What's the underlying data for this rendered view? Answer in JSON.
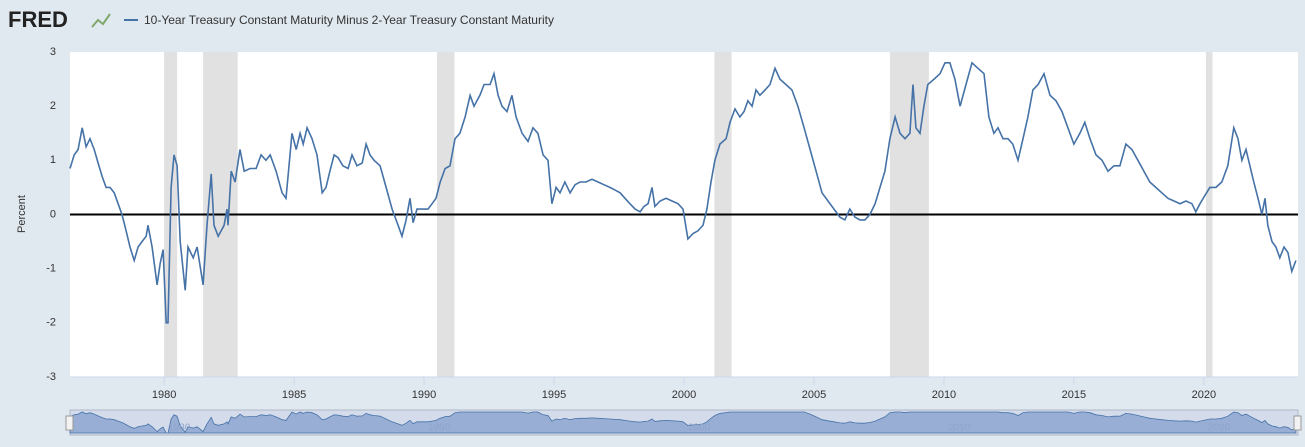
{
  "chart_data": {
    "type": "line",
    "brand": "FRED",
    "y_label": "Percent",
    "x": [
      1976.38,
      1976.54,
      1976.69,
      1976.85,
      1977.0,
      1977.15,
      1977.31,
      1977.46,
      1977.62,
      1977.77,
      1977.92,
      1978.08,
      1978.23,
      1978.38,
      1978.54,
      1978.69,
      1978.85,
      1979.0,
      1979.15,
      1979.31,
      1979.38,
      1979.54,
      1979.73,
      1979.85,
      1979.96,
      1980.08,
      1980.15,
      1980.27,
      1980.38,
      1980.5,
      1980.62,
      1980.81,
      1980.92,
      1981.12,
      1981.27,
      1981.5,
      1981.65,
      1981.81,
      1981.92,
      1982.08,
      1982.31,
      1982.42,
      1982.46,
      1982.58,
      1982.73,
      1982.92,
      1983.08,
      1983.31,
      1983.54,
      1983.73,
      1983.92,
      1984.08,
      1984.31,
      1984.54,
      1984.69,
      1984.92,
      1985.08,
      1985.23,
      1985.35,
      1985.5,
      1985.69,
      1985.88,
      1986.08,
      1986.23,
      1986.38,
      1986.54,
      1986.69,
      1986.88,
      1987.08,
      1987.23,
      1987.42,
      1987.62,
      1987.77,
      1987.92,
      1988.08,
      1988.31,
      1988.54,
      1988.77,
      1989.0,
      1989.15,
      1989.31,
      1989.46,
      1989.58,
      1989.73,
      1989.92,
      1990.15,
      1990.31,
      1990.46,
      1990.62,
      1990.81,
      1991.0,
      1991.19,
      1991.38,
      1991.58,
      1991.77,
      1991.92,
      1992.15,
      1992.31,
      1992.54,
      1992.69,
      1992.85,
      1993.0,
      1993.19,
      1993.38,
      1993.54,
      1993.77,
      1994.0,
      1994.19,
      1994.38,
      1994.58,
      1994.77,
      1994.92,
      1995.08,
      1995.23,
      1995.42,
      1995.62,
      1995.81,
      1996.0,
      1996.23,
      1996.46,
      1996.69,
      1996.92,
      1997.15,
      1997.35,
      1997.54,
      1997.73,
      1997.92,
      1998.12,
      1998.31,
      1998.46,
      1998.62,
      1998.77,
      1998.88,
      1999.08,
      1999.31,
      1999.54,
      1999.77,
      1999.96,
      2000.15,
      2000.35,
      2000.54,
      2000.73,
      2000.88,
      2001.04,
      2001.19,
      2001.38,
      2001.62,
      2001.77,
      2001.96,
      2002.15,
      2002.31,
      2002.46,
      2002.62,
      2002.77,
      2002.92,
      2003.12,
      2003.31,
      2003.5,
      2003.69,
      2003.92,
      2004.15,
      2004.38,
      2004.62,
      2004.85,
      2005.08,
      2005.31,
      2005.54,
      2005.77,
      2006.0,
      2006.19,
      2006.38,
      2006.58,
      2006.77,
      2006.96,
      2007.15,
      2007.35,
      2007.54,
      2007.73,
      2007.92,
      2008.12,
      2008.31,
      2008.5,
      2008.69,
      2008.81,
      2008.92,
      2009.08,
      2009.23,
      2009.38,
      2009.62,
      2009.85,
      2010.04,
      2010.23,
      2010.42,
      2010.62,
      2010.85,
      2011.08,
      2011.31,
      2011.54,
      2011.73,
      2011.92,
      2012.08,
      2012.27,
      2012.46,
      2012.65,
      2012.85,
      2013.04,
      2013.23,
      2013.42,
      2013.62,
      2013.85,
      2014.08,
      2014.31,
      2014.54,
      2014.77,
      2015.0,
      2015.23,
      2015.42,
      2015.62,
      2015.85,
      2016.08,
      2016.31,
      2016.54,
      2016.77,
      2017.0,
      2017.23,
      2017.46,
      2017.69,
      2017.92,
      2018.15,
      2018.38,
      2018.62,
      2018.85,
      2019.08,
      2019.31,
      2019.54,
      2019.69,
      2019.85,
      2020.04,
      2020.23,
      2020.46,
      2020.69,
      2020.92,
      2021.15,
      2021.31,
      2021.46,
      2021.62,
      2021.77,
      2021.92,
      2022.08,
      2022.23,
      2022.35,
      2022.46,
      2022.62,
      2022.77,
      2022.92,
      2023.08,
      2023.23,
      2023.38,
      2023.54
    ],
    "series": [
      {
        "name": "10-Year Treasury Constant Maturity Minus 2-Year Treasury Constant Maturity",
        "color": "#4572a7",
        "values": [
          0.85,
          1.1,
          1.2,
          1.6,
          1.25,
          1.4,
          1.2,
          0.95,
          0.7,
          0.5,
          0.5,
          0.4,
          0.2,
          0.0,
          -0.3,
          -0.6,
          -0.85,
          -0.6,
          -0.5,
          -0.4,
          -0.2,
          -0.6,
          -1.3,
          -0.9,
          -0.65,
          -2.0,
          -2.0,
          0.5,
          1.1,
          0.9,
          -0.5,
          -1.4,
          -0.6,
          -0.8,
          -0.6,
          -1.3,
          -0.2,
          0.75,
          -0.2,
          -0.4,
          -0.2,
          0.1,
          -0.2,
          0.8,
          0.6,
          1.2,
          0.8,
          0.85,
          0.85,
          1.1,
          1.0,
          1.1,
          0.8,
          0.4,
          0.3,
          1.5,
          1.2,
          1.5,
          1.3,
          1.6,
          1.4,
          1.1,
          0.4,
          0.5,
          0.8,
          1.1,
          1.05,
          0.9,
          0.85,
          1.1,
          0.9,
          0.95,
          1.3,
          1.1,
          1.0,
          0.9,
          0.5,
          0.1,
          -0.2,
          -0.4,
          -0.1,
          0.3,
          -0.15,
          0.1,
          0.1,
          0.1,
          0.2,
          0.3,
          0.6,
          0.85,
          0.9,
          1.4,
          1.5,
          1.8,
          2.2,
          2.0,
          2.2,
          2.4,
          2.4,
          2.6,
          2.2,
          2.0,
          1.9,
          2.2,
          1.8,
          1.5,
          1.35,
          1.6,
          1.5,
          1.1,
          1.0,
          0.2,
          0.5,
          0.4,
          0.6,
          0.4,
          0.55,
          0.6,
          0.6,
          0.65,
          0.6,
          0.55,
          0.5,
          0.45,
          0.4,
          0.3,
          0.2,
          0.1,
          0.05,
          0.15,
          0.2,
          0.5,
          0.15,
          0.25,
          0.3,
          0.25,
          0.2,
          0.1,
          -0.45,
          -0.35,
          -0.3,
          -0.2,
          0.1,
          0.6,
          1.0,
          1.3,
          1.4,
          1.7,
          1.95,
          1.8,
          1.9,
          2.1,
          2.0,
          2.3,
          2.2,
          2.3,
          2.4,
          2.7,
          2.5,
          2.4,
          2.3,
          2.0,
          1.6,
          1.2,
          0.8,
          0.4,
          0.25,
          0.1,
          -0.05,
          -0.1,
          0.1,
          -0.05,
          -0.1,
          -0.1,
          0.0,
          0.2,
          0.5,
          0.8,
          1.4,
          1.8,
          1.5,
          1.4,
          1.5,
          2.4,
          1.6,
          1.5,
          2.0,
          2.4,
          2.5,
          2.6,
          2.8,
          2.8,
          2.5,
          2.0,
          2.4,
          2.8,
          2.7,
          2.6,
          1.8,
          1.5,
          1.6,
          1.4,
          1.4,
          1.3,
          1.0,
          1.4,
          1.8,
          2.3,
          2.4,
          2.6,
          2.2,
          2.1,
          1.9,
          1.6,
          1.3,
          1.5,
          1.7,
          1.4,
          1.1,
          1.0,
          0.8,
          0.9,
          0.9,
          1.3,
          1.2,
          1.0,
          0.8,
          0.6,
          0.5,
          0.4,
          0.3,
          0.25,
          0.2,
          0.25,
          0.2,
          0.05,
          0.2,
          0.35,
          0.5,
          0.5,
          0.6,
          0.9,
          1.6,
          1.4,
          1.0,
          1.2,
          0.9,
          0.6,
          0.3,
          0.0,
          0.3,
          -0.2,
          -0.5,
          -0.6,
          -0.8,
          -0.6,
          -0.7,
          -1.05,
          -0.85
        ]
      }
    ],
    "recessions": [
      [
        1980.0,
        1980.5
      ],
      [
        1981.5,
        1982.83
      ],
      [
        1990.5,
        1991.17
      ],
      [
        2001.17,
        2001.83
      ],
      [
        2007.92,
        2009.42
      ],
      [
        2020.08,
        2020.33
      ]
    ],
    "recession_color": "#e1e1e1",
    "xlim": [
      1976.38,
      2023.62
    ],
    "ylim": [
      -3,
      3
    ],
    "xticks": [
      1980,
      1985,
      1990,
      1995,
      2000,
      2005,
      2010,
      2015,
      2020
    ],
    "yticks": [
      -3,
      -2,
      -1,
      0,
      1,
      2,
      3
    ],
    "zero_line": true,
    "grid": false,
    "navigator_ticks": [
      1980,
      1990,
      2000,
      2010,
      2020
    ]
  }
}
